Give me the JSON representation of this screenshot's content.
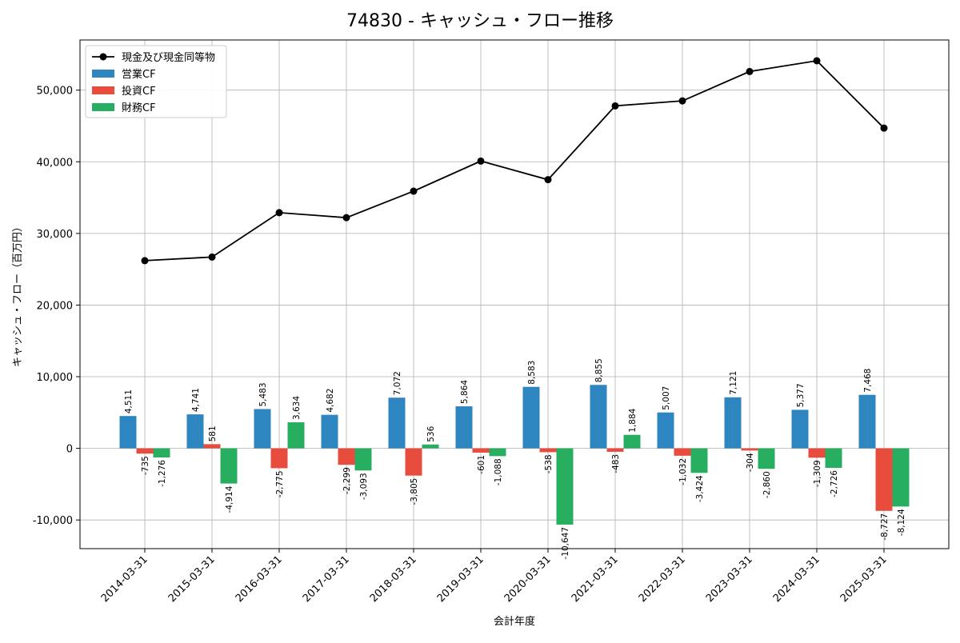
{
  "chart_data": {
    "type": "bar",
    "title": "74830 - キャッシュ・フロー推移",
    "xlabel": "会計年度",
    "ylabel": "キャッシュ・フロー（百万円）",
    "ylim": [
      -14000,
      57000
    ],
    "yticks": [
      -10000,
      0,
      10000,
      20000,
      30000,
      40000,
      50000
    ],
    "ytick_labels": [
      "-10,000",
      "0",
      "10,000",
      "20,000",
      "30,000",
      "40,000",
      "50,000"
    ],
    "grid": true,
    "legend_position": "top-left",
    "categories": [
      "2014-03-31",
      "2015-03-31",
      "2016-03-31",
      "2017-03-31",
      "2018-03-31",
      "2019-03-31",
      "2020-03-31",
      "2021-03-31",
      "2022-03-31",
      "2023-03-31",
      "2024-03-31",
      "2025-03-31"
    ],
    "series": [
      {
        "name": "営業CF",
        "type": "bar",
        "color": "#2e86c1",
        "values": [
          4511,
          4741,
          5483,
          4682,
          7072,
          5864,
          8583,
          8855,
          5007,
          7121,
          5377,
          7468
        ],
        "labels": [
          "4,511",
          "4,741",
          "5,483",
          "4,682",
          "7,072",
          "5,864",
          "8,583",
          "8,855",
          "5,007",
          "7,121",
          "5,377",
          "7,468"
        ]
      },
      {
        "name": "投資CF",
        "type": "bar",
        "color": "#e74c3c",
        "values": [
          -735,
          581,
          -2775,
          -2299,
          -3805,
          -601,
          -538,
          -483,
          -1032,
          -304,
          -1309,
          -8727
        ],
        "labels": [
          "-735",
          "581",
          "-2,775",
          "-2,299",
          "-3,805",
          "-601",
          "-538",
          "-483",
          "-1,032",
          "-304",
          "-1,309",
          "-8,727"
        ]
      },
      {
        "name": "財務CF",
        "type": "bar",
        "color": "#27ae60",
        "values": [
          -1276,
          -4914,
          3634,
          -3093,
          536,
          -1088,
          -10647,
          1884,
          -3424,
          -2860,
          -2726,
          -8124
        ],
        "labels": [
          "-1,276",
          "-4,914",
          "3,634",
          "-3,093",
          "536",
          "-1,088",
          "-10,647",
          "1,884",
          "-3,424",
          "-2,860",
          "-2,726",
          "-8,124"
        ]
      },
      {
        "name": "現金及び現金同等物",
        "type": "line",
        "color": "#000000",
        "values": [
          26200,
          26700,
          32900,
          32200,
          35900,
          40100,
          37500,
          47800,
          48500,
          52600,
          54100,
          44700
        ]
      }
    ]
  }
}
